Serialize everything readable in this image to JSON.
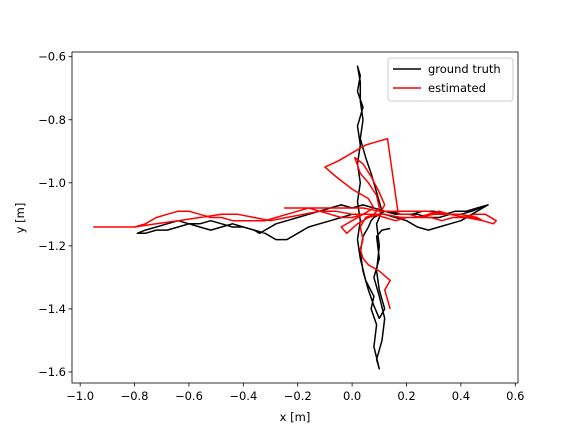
{
  "chart_data": {
    "type": "line",
    "title": "",
    "xlabel": "x [m]",
    "ylabel": "y [m]",
    "xlim": [
      -1.03,
      0.61
    ],
    "ylim": [
      -1.635,
      -0.585
    ],
    "xticks": [
      -1.0,
      -0.8,
      -0.6,
      -0.4,
      -0.2,
      0.0,
      0.2,
      0.4,
      0.6
    ],
    "xtick_labels": [
      "−1.0",
      "−0.8",
      "−0.6",
      "−0.4",
      "−0.2",
      "0.0",
      "0.2",
      "0.4",
      "0.6"
    ],
    "yticks": [
      -1.6,
      -1.4,
      -1.2,
      -1.0,
      -0.8,
      -0.6
    ],
    "ytick_labels": [
      "−1.6",
      "−1.4",
      "−1.2",
      "−1.0",
      "−0.8",
      "−0.6"
    ],
    "grid": false,
    "legend_position": "top-right",
    "series": [
      {
        "name": "ground truth",
        "color": "#000000",
        "x": [
          0.14,
          0.11,
          0.09,
          0.1,
          0.08,
          0.1,
          0.12,
          0.11,
          0.09,
          0.1,
          0.08,
          0.09,
          0.07,
          0.08,
          0.05,
          0.03,
          0.02,
          0.03,
          0.02,
          0.03,
          0.02,
          0.03,
          0.02,
          0.04,
          0.02,
          0.03,
          0.02,
          0.03,
          0.03,
          0.04,
          0.03,
          0.05,
          0.07,
          0.08,
          0.09,
          0.1,
          0.11,
          0.09,
          0.1,
          0.09,
          0.1,
          0.12,
          0.1,
          0.08,
          0.06,
          0.04,
          0.03,
          0.04,
          0.06,
          0.07,
          0.08,
          0.1,
          0.12,
          0.14,
          0.18,
          0.22,
          0.26,
          0.3,
          0.34,
          0.38,
          0.42,
          0.46,
          0.5,
          0.48,
          0.44,
          0.4,
          0.36,
          0.32,
          0.28,
          0.24,
          0.2,
          0.16,
          0.12,
          0.08,
          0.04,
          0.0,
          -0.04,
          -0.08,
          -0.12,
          -0.16,
          -0.2,
          -0.24,
          -0.28,
          -0.32,
          -0.36,
          -0.4,
          -0.44,
          -0.48,
          -0.52,
          -0.56,
          -0.6,
          -0.64,
          -0.68,
          -0.72,
          -0.76,
          -0.79,
          -0.76,
          -0.72,
          -0.68,
          -0.64,
          -0.6,
          -0.56,
          -0.52,
          -0.48,
          -0.44,
          -0.4,
          -0.36,
          -0.34,
          -0.32,
          -0.28,
          -0.24,
          -0.2,
          -0.16,
          -0.12,
          -0.08,
          -0.04,
          0.0,
          0.04,
          0.08,
          0.12,
          0.16,
          0.2,
          0.24,
          0.28,
          0.32,
          0.36,
          0.4,
          0.44,
          0.47,
          0.5
        ],
        "y": [
          -1.145,
          -1.15,
          -1.17,
          -1.24,
          -1.3,
          -1.36,
          -1.43,
          -1.5,
          -1.56,
          -1.59,
          -1.52,
          -1.45,
          -1.4,
          -1.36,
          -1.31,
          -1.24,
          -1.18,
          -1.12,
          -1.06,
          -1.0,
          -0.94,
          -0.88,
          -0.82,
          -0.76,
          -0.71,
          -0.66,
          -0.63,
          -0.68,
          -0.74,
          -0.8,
          -0.86,
          -0.92,
          -0.97,
          -1.0,
          -1.03,
          -1.06,
          -1.09,
          -1.13,
          -1.2,
          -1.28,
          -1.34,
          -1.4,
          -1.43,
          -1.39,
          -1.34,
          -1.28,
          -1.22,
          -1.17,
          -1.14,
          -1.12,
          -1.11,
          -1.1,
          -1.09,
          -1.09,
          -1.1,
          -1.1,
          -1.09,
          -1.09,
          -1.1,
          -1.09,
          -1.09,
          -1.08,
          -1.07,
          -1.08,
          -1.1,
          -1.12,
          -1.13,
          -1.14,
          -1.15,
          -1.14,
          -1.12,
          -1.11,
          -1.1,
          -1.1,
          -1.1,
          -1.1,
          -1.11,
          -1.12,
          -1.13,
          -1.14,
          -1.16,
          -1.18,
          -1.18,
          -1.16,
          -1.15,
          -1.14,
          -1.13,
          -1.14,
          -1.15,
          -1.14,
          -1.13,
          -1.14,
          -1.15,
          -1.15,
          -1.16,
          -1.16,
          -1.15,
          -1.14,
          -1.13,
          -1.12,
          -1.13,
          -1.13,
          -1.12,
          -1.13,
          -1.14,
          -1.14,
          -1.15,
          -1.16,
          -1.15,
          -1.13,
          -1.12,
          -1.11,
          -1.1,
          -1.09,
          -1.08,
          -1.07,
          -1.08,
          -1.07,
          -1.08,
          -1.09,
          -1.1,
          -1.1,
          -1.1,
          -1.11,
          -1.11,
          -1.1,
          -1.1,
          -1.09,
          -1.08,
          -1.07
        ]
      },
      {
        "name": "estimated",
        "color": "#ff0000",
        "x": [
          0.14,
          0.13,
          0.12,
          0.14,
          0.1,
          0.06,
          0.04,
          0.03,
          0.04,
          0.03,
          0.05,
          0.08,
          0.1,
          0.09,
          0.06,
          0.03,
          0.01,
          0.04,
          0.07,
          0.1,
          0.12,
          0.1,
          0.06,
          0.02,
          -0.02,
          -0.04,
          0.0,
          0.04,
          0.08,
          0.06,
          0.0,
          -0.06,
          -0.1,
          -0.05,
          0.01,
          0.05,
          0.09,
          0.13,
          0.17,
          0.21,
          0.25,
          0.29,
          0.33,
          0.37,
          0.41,
          0.45,
          0.49,
          0.53,
          0.52,
          0.48,
          0.44,
          0.4,
          0.36,
          0.32,
          0.28,
          0.24,
          0.2,
          0.16,
          0.12,
          0.08,
          0.04,
          0.0,
          -0.04,
          -0.08,
          -0.12,
          -0.16,
          -0.2,
          -0.24,
          -0.28,
          -0.32,
          -0.36,
          -0.4,
          -0.44,
          -0.48,
          -0.52,
          -0.56,
          -0.6,
          -0.64,
          -0.68,
          -0.72,
          -0.76,
          -0.8,
          -0.84,
          -0.88,
          -0.92,
          -0.95,
          -0.88,
          -0.8,
          -0.72,
          -0.64,
          -0.56,
          -0.48,
          -0.42,
          -0.36,
          -0.3,
          -0.24,
          -0.18,
          -0.12,
          -0.06,
          0.0,
          0.06,
          0.12,
          0.18,
          0.24,
          0.3,
          0.36,
          0.42,
          0.48,
          0.46,
          0.4,
          0.34,
          0.28,
          0.22,
          0.16,
          0.1,
          0.04,
          -0.02,
          -0.08,
          -0.14,
          -0.2,
          -0.25
        ],
        "y": [
          -1.4,
          -1.37,
          -1.34,
          -1.31,
          -1.28,
          -1.26,
          -1.24,
          -1.21,
          -1.18,
          -1.14,
          -1.11,
          -1.1,
          -1.08,
          -1.04,
          -1.0,
          -0.97,
          -0.92,
          -0.94,
          -0.98,
          -1.03,
          -1.07,
          -1.1,
          -1.11,
          -1.13,
          -1.16,
          -1.14,
          -1.12,
          -1.1,
          -1.08,
          -1.05,
          -1.02,
          -0.98,
          -0.95,
          -0.93,
          -0.9,
          -0.88,
          -0.87,
          -0.86,
          -1.1,
          -1.1,
          -1.11,
          -1.11,
          -1.12,
          -1.11,
          -1.11,
          -1.1,
          -1.1,
          -1.12,
          -1.13,
          -1.12,
          -1.11,
          -1.1,
          -1.1,
          -1.09,
          -1.1,
          -1.11,
          -1.11,
          -1.12,
          -1.11,
          -1.1,
          -1.1,
          -1.11,
          -1.11,
          -1.1,
          -1.09,
          -1.08,
          -1.09,
          -1.1,
          -1.11,
          -1.12,
          -1.12,
          -1.12,
          -1.12,
          -1.11,
          -1.11,
          -1.1,
          -1.09,
          -1.09,
          -1.1,
          -1.11,
          -1.13,
          -1.14,
          -1.14,
          -1.14,
          -1.14,
          -1.14,
          -1.14,
          -1.14,
          -1.13,
          -1.12,
          -1.11,
          -1.1,
          -1.1,
          -1.11,
          -1.12,
          -1.11,
          -1.1,
          -1.09,
          -1.09,
          -1.1,
          -1.1,
          -1.1,
          -1.11,
          -1.11,
          -1.1,
          -1.1,
          -1.11,
          -1.12,
          -1.11,
          -1.1,
          -1.1,
          -1.09,
          -1.09,
          -1.09,
          -1.09,
          -1.08,
          -1.08,
          -1.08,
          -1.08,
          -1.08,
          -1.08
        ]
      }
    ]
  }
}
